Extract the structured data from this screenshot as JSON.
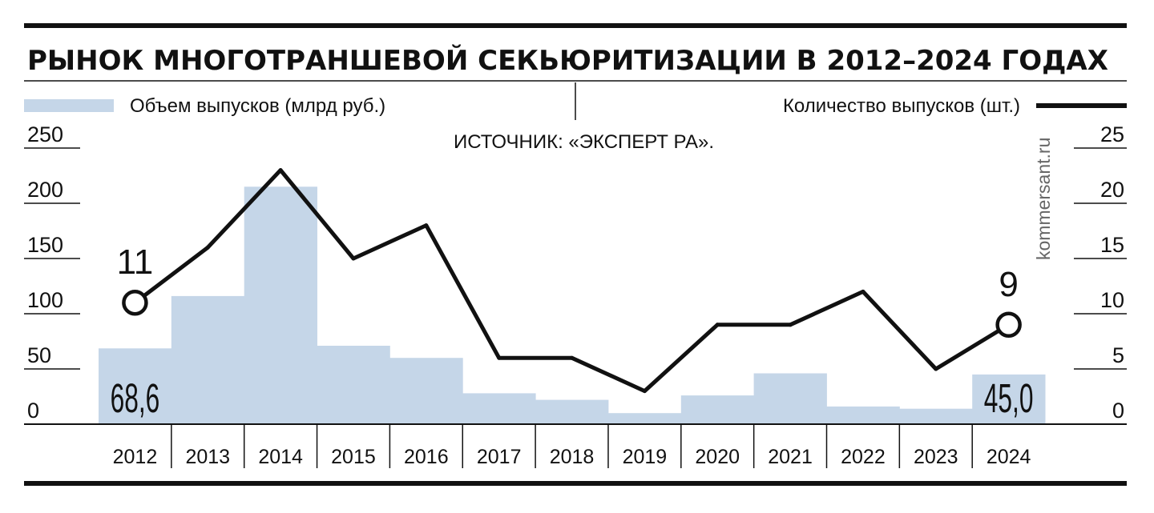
{
  "chart_data": {
    "type": "bar",
    "title": "РЫНОК МНОГОТРАНШЕВОЙ СЕКЬЮРИТИЗАЦИИ В 2012–2024 ГОДАХ",
    "source": "ИСТОЧНИК: «ЭКСПЕРТ РА».",
    "credit": "kommersant.ru",
    "categories": [
      "2012",
      "2013",
      "2014",
      "2015",
      "2016",
      "2017",
      "2018",
      "2019",
      "2020",
      "2021",
      "2022",
      "2023",
      "2024"
    ],
    "series": [
      {
        "name": "Объем выпусков (млрд руб.)",
        "kind": "bar",
        "axis": "left",
        "color": "#c5d6e8",
        "values": [
          68.6,
          116,
          215,
          71,
          60,
          28,
          22,
          10,
          26,
          46,
          16,
          14,
          45.0
        ]
      },
      {
        "name": "Количество выпусков (шт.)",
        "kind": "line",
        "axis": "right",
        "color": "#111111",
        "values": [
          11,
          16,
          23,
          15,
          18,
          6,
          6,
          3,
          9,
          9,
          12,
          5,
          9
        ]
      }
    ],
    "left_axis": {
      "ylim": [
        0,
        250
      ],
      "ticks": [
        "0",
        "50",
        "100",
        "150",
        "200",
        "250"
      ]
    },
    "right_axis": {
      "ylim": [
        0,
        25
      ],
      "ticks": [
        "0",
        "5",
        "10",
        "15",
        "20",
        "25"
      ]
    },
    "bar_labels": [
      {
        "index": 0,
        "text": "68,6"
      },
      {
        "index": 12,
        "text": "45,0"
      }
    ],
    "point_labels": [
      {
        "index": 0,
        "text": "11"
      },
      {
        "index": 12,
        "text": "9"
      }
    ],
    "legend_placement": "top",
    "grid": "ticks-only"
  }
}
